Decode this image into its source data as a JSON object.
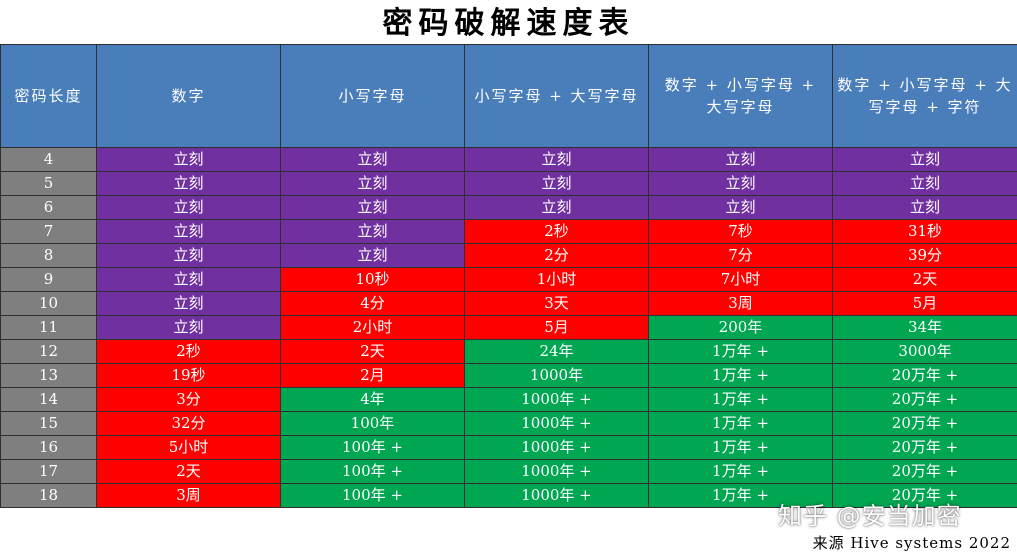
{
  "title": "密码破解速度表",
  "headers": [
    "密码长度",
    "数字",
    "小写字母",
    "小写字母 + 大写字母",
    "数字 + 小写字母 + 大写字母",
    "数字 + 小写字母 + 大写字母 + 字符"
  ],
  "rows": [
    {
      "length": "4",
      "cells": [
        [
          "立刻",
          "purple"
        ],
        [
          "立刻",
          "purple"
        ],
        [
          "立刻",
          "purple"
        ],
        [
          "立刻",
          "purple"
        ],
        [
          "立刻",
          "purple"
        ]
      ]
    },
    {
      "length": "5",
      "cells": [
        [
          "立刻",
          "purple"
        ],
        [
          "立刻",
          "purple"
        ],
        [
          "立刻",
          "purple"
        ],
        [
          "立刻",
          "purple"
        ],
        [
          "立刻",
          "purple"
        ]
      ]
    },
    {
      "length": "6",
      "cells": [
        [
          "立刻",
          "purple"
        ],
        [
          "立刻",
          "purple"
        ],
        [
          "立刻",
          "purple"
        ],
        [
          "立刻",
          "purple"
        ],
        [
          "立刻",
          "purple"
        ]
      ]
    },
    {
      "length": "7",
      "cells": [
        [
          "立刻",
          "purple"
        ],
        [
          "立刻",
          "purple"
        ],
        [
          "2秒",
          "red"
        ],
        [
          "7秒",
          "red"
        ],
        [
          "31秒",
          "red"
        ]
      ]
    },
    {
      "length": "8",
      "cells": [
        [
          "立刻",
          "purple"
        ],
        [
          "立刻",
          "purple"
        ],
        [
          "2分",
          "red"
        ],
        [
          "7分",
          "red"
        ],
        [
          "39分",
          "red"
        ]
      ]
    },
    {
      "length": "9",
      "cells": [
        [
          "立刻",
          "purple"
        ],
        [
          "10秒",
          "red"
        ],
        [
          "1小时",
          "red"
        ],
        [
          "7小时",
          "red"
        ],
        [
          "2天",
          "red"
        ]
      ]
    },
    {
      "length": "10",
      "cells": [
        [
          "立刻",
          "purple"
        ],
        [
          "4分",
          "red"
        ],
        [
          "3天",
          "red"
        ],
        [
          "3周",
          "red"
        ],
        [
          "5月",
          "red"
        ]
      ]
    },
    {
      "length": "11",
      "cells": [
        [
          "立刻",
          "purple"
        ],
        [
          "2小时",
          "red"
        ],
        [
          "5月",
          "red"
        ],
        [
          "200年",
          "green"
        ],
        [
          "34年",
          "green"
        ]
      ]
    },
    {
      "length": "12",
      "cells": [
        [
          "2秒",
          "red"
        ],
        [
          "2天",
          "red"
        ],
        [
          "24年",
          "green"
        ],
        [
          "1万年 +",
          "green"
        ],
        [
          "3000年",
          "green"
        ]
      ]
    },
    {
      "length": "13",
      "cells": [
        [
          "19秒",
          "red"
        ],
        [
          "2月",
          "red"
        ],
        [
          "1000年",
          "green"
        ],
        [
          "1万年 +",
          "green"
        ],
        [
          "20万年 +",
          "green"
        ]
      ]
    },
    {
      "length": "14",
      "cells": [
        [
          "3分",
          "red"
        ],
        [
          "4年",
          "green"
        ],
        [
          "1000年 +",
          "green"
        ],
        [
          "1万年 +",
          "green"
        ],
        [
          "20万年 +",
          "green"
        ]
      ]
    },
    {
      "length": "15",
      "cells": [
        [
          "32分",
          "red"
        ],
        [
          "100年",
          "green"
        ],
        [
          "1000年 +",
          "green"
        ],
        [
          "1万年 +",
          "green"
        ],
        [
          "20万年 +",
          "green"
        ]
      ]
    },
    {
      "length": "16",
      "cells": [
        [
          "5小时",
          "red"
        ],
        [
          "100年 +",
          "green"
        ],
        [
          "1000年 +",
          "green"
        ],
        [
          "1万年 +",
          "green"
        ],
        [
          "20万年 +",
          "green"
        ]
      ]
    },
    {
      "length": "17",
      "cells": [
        [
          "2天",
          "red"
        ],
        [
          "100年 +",
          "green"
        ],
        [
          "1000年 +",
          "green"
        ],
        [
          "1万年 +",
          "green"
        ],
        [
          "20万年 +",
          "green"
        ]
      ]
    },
    {
      "length": "18",
      "cells": [
        [
          "3周",
          "red"
        ],
        [
          "100年 +",
          "green"
        ],
        [
          "1000年 +",
          "green"
        ],
        [
          "1万年 +",
          "green"
        ],
        [
          "20万年 +",
          "green"
        ]
      ]
    }
  ],
  "colors": {
    "purple": "#7030a0",
    "red": "#ff0000",
    "green": "#00a651",
    "header": "#4a7ebb",
    "length_col": "#7f7f7f"
  },
  "watermark": "知乎 @安当加密",
  "source": "来源 Hive systems 2022"
}
